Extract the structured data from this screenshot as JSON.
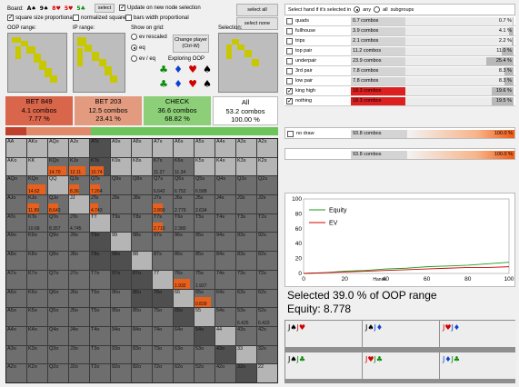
{
  "toolbar": {
    "board_label": "Board:",
    "board_cards": [
      {
        "text": "A♠",
        "color": "#000000"
      },
      {
        "text": "9♠",
        "color": "#000000"
      },
      {
        "text": "8♥",
        "color": "#d00000"
      },
      {
        "text": "5♥",
        "color": "#d00000"
      },
      {
        "text": "5♣",
        "color": "#0a8a0a"
      }
    ],
    "select_label": "select",
    "update_label": "Update on new node selection",
    "select_all_label": "select all",
    "select_none_label": "select none",
    "opt_square_size": "square size proportional",
    "opt_normalized": "normalized squares",
    "opt_bars": "bars width proportional"
  },
  "ranges": {
    "oop_label": "OOP range:",
    "ip_label": "IP range:",
    "selection_label": "Selection:"
  },
  "show_on_grid": {
    "title": "Show on grid:",
    "options": [
      "ev rescaled",
      "eq",
      "ev / eq"
    ],
    "change_player": "Change player (Ctrl-W)",
    "exploring": "Exploring OOP"
  },
  "actions": [
    {
      "name": "BET 849",
      "combos": "4.1 combos",
      "pct": "7.77 %",
      "color": "#d9664b"
    },
    {
      "name": "BET 203",
      "combos": "12.5 combos",
      "pct": "23.41 %",
      "color": "#e39b80"
    },
    {
      "name": "CHECK",
      "combos": "36.6 combos",
      "pct": "68.82 %",
      "color": "#8ccf78"
    },
    {
      "name": "All",
      "combos": "53.2 combos",
      "pct": "100.00 %",
      "color": "#ffffff"
    }
  ],
  "grid": {
    "rows": [
      [
        "AA",
        "AKs",
        "AQs",
        "AJs",
        "ATs",
        "A9s",
        "A8s",
        "A7s",
        "A6s",
        "A5s",
        "A4s",
        "A3s",
        "A2s"
      ],
      [
        "AKo",
        "KK",
        "KQs",
        "KJs",
        "KTs",
        "K9s",
        "K8s",
        "K7s",
        "K6s",
        "K5s",
        "K4s",
        "K3s",
        "K2s"
      ],
      [
        "AQo",
        "KQo",
        "QQ",
        "QJs",
        "QTs",
        "Q9s",
        "Q8s",
        "Q7s",
        "Q6s",
        "Q5s",
        "Q4s",
        "Q3s",
        "Q2s"
      ],
      [
        "AJo",
        "KJo",
        "QJo",
        "JJ",
        "JTs",
        "J9s",
        "J8s",
        "J7s",
        "J6s",
        "J5s",
        "J4s",
        "J3s",
        "J2s"
      ],
      [
        "ATo",
        "KTo",
        "QTo",
        "JTo",
        "TT",
        "T9s",
        "T8s",
        "T7s",
        "T6s",
        "T5s",
        "T4s",
        "T3s",
        "T2s"
      ],
      [
        "A9o",
        "K9o",
        "Q9o",
        "J9o",
        "T9o",
        "99",
        "98s",
        "97s",
        "96s",
        "95s",
        "94s",
        "93s",
        "92s"
      ],
      [
        "A8o",
        "K8o",
        "Q8o",
        "J8o",
        "T8o",
        "98o",
        "88",
        "87s",
        "86s",
        "85s",
        "84s",
        "83s",
        "82s"
      ],
      [
        "A7o",
        "K7o",
        "Q7o",
        "J7o",
        "T7o",
        "97o",
        "87o",
        "77",
        "76s",
        "75s",
        "74s",
        "73s",
        "72s"
      ],
      [
        "A6o",
        "K6o",
        "Q6o",
        "J6o",
        "T6o",
        "96o",
        "86o",
        "76o",
        "66",
        "65s",
        "64s",
        "63s",
        "62s"
      ],
      [
        "A5o",
        "K5o",
        "Q5o",
        "J5o",
        "T5o",
        "95o",
        "85o",
        "75o",
        "65o",
        "55",
        "54s",
        "53s",
        "52s"
      ],
      [
        "A4o",
        "K4o",
        "Q4o",
        "J4o",
        "T4o",
        "94o",
        "84o",
        "74o",
        "64o",
        "54o",
        "44",
        "43s",
        "42s"
      ],
      [
        "A3o",
        "K3o",
        "Q3o",
        "J3o",
        "T3o",
        "93o",
        "83o",
        "73o",
        "63o",
        "53o",
        "43o",
        "33",
        "32s"
      ],
      [
        "A2o",
        "K2o",
        "Q2o",
        "J2o",
        "T2o",
        "92o",
        "82o",
        "72o",
        "62o",
        "52o",
        "42o",
        "32o",
        "22"
      ]
    ],
    "values": [
      {
        "r": 1,
        "c": 2,
        "text": "14.70",
        "fill": 0.9
      },
      {
        "r": 1,
        "c": 3,
        "text": "12.11",
        "fill": 0.8
      },
      {
        "r": 1,
        "c": 4,
        "text": "10.74",
        "fill": 0.7
      },
      {
        "r": 1,
        "c": 7,
        "text": "11.27",
        "fill": 0.0
      },
      {
        "r": 1,
        "c": 8,
        "text": "11.34",
        "fill": 0.0
      },
      {
        "r": 2,
        "c": 1,
        "text": "14.62",
        "fill": 0.9
      },
      {
        "r": 2,
        "c": 3,
        "text": "8.36",
        "fill": 0.5
      },
      {
        "r": 2,
        "c": 4,
        "text": "7.264",
        "fill": 0.5
      },
      {
        "r": 2,
        "c": 7,
        "text": "6.642",
        "fill": 0.0
      },
      {
        "r": 2,
        "c": 8,
        "text": "6.752",
        "fill": 0.0
      },
      {
        "r": 2,
        "c": 9,
        "text": "6.588",
        "fill": 0.0
      },
      {
        "r": 3,
        "c": 1,
        "text": "11.89",
        "fill": 0.6
      },
      {
        "r": 3,
        "c": 2,
        "text": "8.643",
        "fill": 0.5
      },
      {
        "r": 3,
        "c": 4,
        "text": "4.743",
        "fill": 0.4
      },
      {
        "r": 3,
        "c": 7,
        "text": "2.890",
        "fill": 0.5
      },
      {
        "r": 3,
        "c": 8,
        "text": "2.779",
        "fill": 0.0
      },
      {
        "r": 3,
        "c": 9,
        "text": "2.634",
        "fill": 0.0
      },
      {
        "r": 4,
        "c": 1,
        "text": "10.68",
        "fill": 0.0
      },
      {
        "r": 4,
        "c": 2,
        "text": "8.357",
        "fill": 0.0
      },
      {
        "r": 4,
        "c": 3,
        "text": "4.745",
        "fill": 0.0
      },
      {
        "r": 4,
        "c": 7,
        "text": "2.710",
        "fill": 0.5
      },
      {
        "r": 4,
        "c": 8,
        "text": "2.380",
        "fill": 0.0
      },
      {
        "r": 7,
        "c": 8,
        "text": "1.932",
        "fill": 0.8
      },
      {
        "r": 7,
        "c": 9,
        "text": "1.927",
        "fill": 0.0
      },
      {
        "r": 8,
        "c": 9,
        "text": "0.839",
        "fill": 0.8
      },
      {
        "r": 9,
        "c": 11,
        "text": "6.425",
        "fill": 0.0
      },
      {
        "r": 9,
        "c": 12,
        "text": "6.423",
        "fill": 0.0
      }
    ]
  },
  "subgroups": {
    "header": "Select hand if it's selected in",
    "opt_any": "any",
    "opt_all": "all",
    "subgroups_label": "subgroups",
    "rows": [
      {
        "name": "quads",
        "combos": "0.7 combos",
        "pct": "0.7 %",
        "checked": false,
        "fill": 0.0,
        "pfill": 0.01
      },
      {
        "name": "fullhouse",
        "combos": "3.9 combos",
        "pct": "4.1 %",
        "checked": false,
        "fill": 0.0,
        "pfill": 0.04
      },
      {
        "name": "trips",
        "combos": "2.1 combos",
        "pct": "2.2 %",
        "checked": false,
        "fill": 0.0,
        "pfill": 0.02
      },
      {
        "name": "top pair",
        "combos": "11.2 combos",
        "pct": "11.0 %",
        "checked": false,
        "fill": 0.0,
        "pfill": 0.11
      },
      {
        "name": "underpair",
        "combos": "23.9 combos",
        "pct": "25.4 %",
        "checked": false,
        "fill": 0.0,
        "pfill": 0.25
      },
      {
        "name": "3rd pair",
        "combos": "7.8 combos",
        "pct": "8.3 %",
        "checked": false,
        "fill": 0.0,
        "pfill": 0.08
      },
      {
        "name": "low pair",
        "combos": "7.8 combos",
        "pct": "8.3 %",
        "checked": false,
        "fill": 0.0,
        "pfill": 0.08
      },
      {
        "name": "king high",
        "combos": "18.3 combos",
        "pct": "19.6 %",
        "checked": true,
        "fill": 1.0,
        "pfill": 0.2
      },
      {
        "name": "nothing",
        "combos": "18.3 combos",
        "pct": "19.5 %",
        "checked": true,
        "fill": 1.0,
        "pfill": 0.2
      }
    ],
    "nodraw": {
      "name": "no draw",
      "combos": "93.8 combos",
      "pct": "100.0 %"
    },
    "total": {
      "combos": "93.8 combos",
      "pct": "100.0 %"
    }
  },
  "equity_chart": {
    "chart_data": {
      "type": "line",
      "series": [
        {
          "name": "Equity",
          "color": "#1a9a1a",
          "x": [
            0,
            10,
            20,
            30,
            35,
            40,
            50,
            55,
            60,
            70,
            80,
            90,
            100
          ],
          "y": [
            0,
            1,
            3,
            4,
            5,
            6,
            7,
            8,
            9,
            10,
            11,
            13,
            15
          ]
        },
        {
          "name": "EV",
          "color": "#d00000",
          "x": [
            0,
            10,
            20,
            30,
            40,
            50,
            60,
            70,
            80,
            90,
            100
          ],
          "y": [
            0,
            1,
            2,
            3,
            4,
            5,
            6,
            7,
            8,
            8,
            9
          ]
        }
      ],
      "xlabel": "Hands",
      "x_ticks": [
        0,
        20,
        40,
        60,
        80,
        100
      ],
      "y_ticks": [
        0,
        20,
        40,
        60,
        80,
        100
      ],
      "xlim": [
        0,
        100
      ],
      "ylim": [
        0,
        100
      ]
    }
  },
  "summary": {
    "selected": "Selected 39.0 % of OOP range",
    "equity": "Equity: 8.778"
  },
  "hands": [
    {
      "c1": "J♠",
      "c1color": "#000000",
      "c2": "J♥",
      "c2color": "#d00000"
    },
    {
      "c1": "J♠",
      "c1color": "#000000",
      "c2": "J♦",
      "c2color": "#1040d0"
    },
    {
      "c1": "J♥",
      "c1color": "#d00000",
      "c2": "J♦",
      "c2color": "#1040d0"
    },
    {
      "c1": "J♠",
      "c1color": "#000000",
      "c2": "J♣",
      "c2color": "#0a8a0a"
    },
    {
      "c1": "J♥",
      "c1color": "#d00000",
      "c2": "J♣",
      "c2color": "#0a8a0a"
    },
    {
      "c1": "J♦",
      "c1color": "#1040d0",
      "c2": "J♣",
      "c2color": "#0a8a0a"
    }
  ]
}
